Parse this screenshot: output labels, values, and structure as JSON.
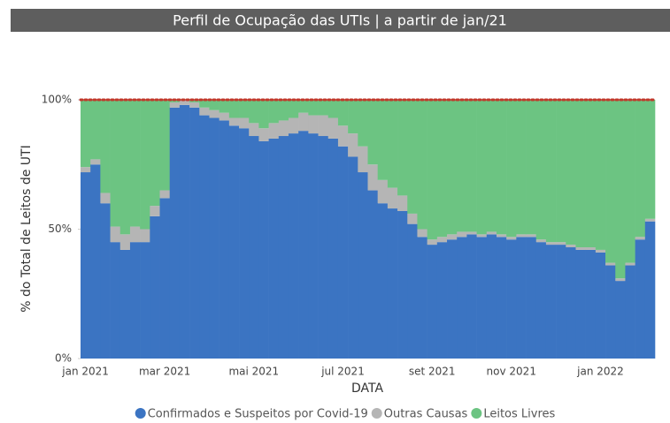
{
  "chart_data": {
    "type": "stacked_bar",
    "title": "Perfil de Ocupação das UTIs | a partir de jan/21",
    "xlabel": "DATA",
    "ylabel": "% do Total de Leitos de UTI",
    "categories": [
      "jan 2021",
      null,
      null,
      null,
      null,
      null,
      null,
      null,
      "mar 2021",
      null,
      null,
      null,
      null,
      null,
      null,
      null,
      null,
      "mai 2021",
      null,
      null,
      null,
      null,
      null,
      null,
      null,
      null,
      "jul 2021",
      null,
      null,
      null,
      null,
      null,
      null,
      null,
      null,
      "set 2021",
      null,
      null,
      null,
      null,
      null,
      null,
      null,
      "nov 2021",
      null,
      null,
      null,
      null,
      null,
      null,
      null,
      null,
      "jan 2022",
      null,
      null,
      null,
      null,
      null
    ],
    "series": [
      {
        "name": "Confirmados e Suspeitos por Covid-19",
        "color": "#3b74c2",
        "values": [
          72,
          75,
          60,
          45,
          42,
          45,
          45,
          55,
          62,
          97,
          98,
          97,
          94,
          93,
          92,
          90,
          89,
          86,
          84,
          85,
          86,
          87,
          88,
          87,
          86,
          85,
          82,
          78,
          72,
          65,
          60,
          58,
          57,
          52,
          47,
          44,
          45,
          46,
          47,
          48,
          47,
          48,
          47,
          46,
          47,
          47,
          45,
          44,
          44,
          43,
          42,
          42,
          41,
          36,
          30,
          36,
          46,
          53
        ]
      },
      {
        "name": "Outras Causas",
        "color": "#b5b5b5",
        "values": [
          2,
          2,
          4,
          6,
          6,
          6,
          5,
          4,
          3,
          2,
          2,
          2,
          3,
          3,
          3,
          3,
          4,
          5,
          5,
          6,
          6,
          6,
          7,
          7,
          8,
          8,
          8,
          9,
          10,
          10,
          9,
          8,
          6,
          4,
          3,
          2,
          2,
          2,
          2,
          1,
          1,
          1,
          1,
          1,
          1,
          1,
          1,
          1,
          1,
          1,
          1,
          1,
          1,
          1,
          1,
          1,
          1,
          1
        ]
      },
      {
        "name": "Leitos Livres",
        "color": "#6cc482",
        "values": [
          26,
          23,
          36,
          49,
          52,
          49,
          50,
          41,
          35,
          1,
          0,
          1,
          3,
          4,
          5,
          7,
          7,
          9,
          11,
          9,
          8,
          7,
          5,
          6,
          6,
          7,
          10,
          13,
          18,
          25,
          31,
          34,
          37,
          44,
          50,
          54,
          53,
          52,
          51,
          51,
          52,
          51,
          52,
          53,
          52,
          52,
          54,
          55,
          55,
          56,
          57,
          57,
          58,
          63,
          69,
          63,
          53,
          46
        ]
      }
    ],
    "ylim": [
      0,
      100
    ],
    "yticks": [
      {
        "value": 0,
        "label": "0%"
      },
      {
        "value": 50,
        "label": "50%"
      },
      {
        "value": 100,
        "label": "100%"
      }
    ],
    "reference_line": {
      "value": 100,
      "color": "#c0392b"
    }
  }
}
